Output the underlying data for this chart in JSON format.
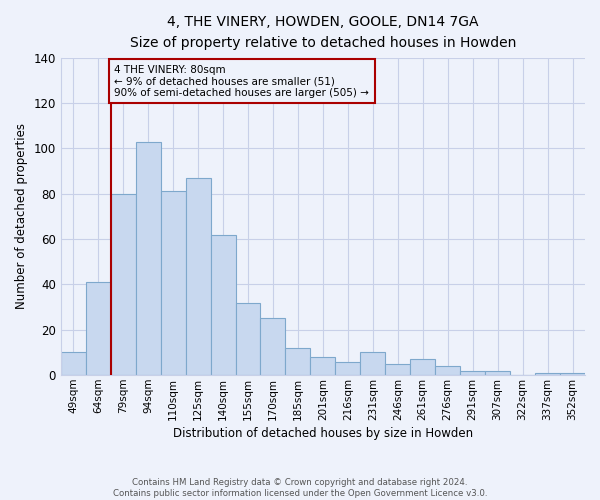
{
  "title": "4, THE VINERY, HOWDEN, GOOLE, DN14 7GA",
  "subtitle": "Size of property relative to detached houses in Howden",
  "xlabel": "Distribution of detached houses by size in Howden",
  "ylabel": "Number of detached properties",
  "categories": [
    "49sqm",
    "64sqm",
    "79sqm",
    "94sqm",
    "110sqm",
    "125sqm",
    "140sqm",
    "155sqm",
    "170sqm",
    "185sqm",
    "201sqm",
    "216sqm",
    "231sqm",
    "246sqm",
    "261sqm",
    "276sqm",
    "291sqm",
    "307sqm",
    "322sqm",
    "337sqm",
    "352sqm"
  ],
  "values": [
    10,
    41,
    80,
    103,
    81,
    87,
    62,
    32,
    25,
    12,
    8,
    6,
    10,
    5,
    7,
    4,
    2,
    2,
    0,
    1,
    1
  ],
  "bar_color": "#c8d8ef",
  "bar_edge_color": "#7ea8cc",
  "vline_x_index": 2,
  "vline_color": "#aa0000",
  "ylim": [
    0,
    140
  ],
  "annotation_text": "4 THE VINERY: 80sqm\n← 9% of detached houses are smaller (51)\n90% of semi-detached houses are larger (505) →",
  "annotation_box_edgecolor": "#aa0000",
  "footer_line1": "Contains HM Land Registry data © Crown copyright and database right 2024.",
  "footer_line2": "Contains public sector information licensed under the Open Government Licence v3.0.",
  "background_color": "#eef2fb",
  "grid_color": "#c8d0e8",
  "yticks": [
    0,
    20,
    40,
    60,
    80,
    100,
    120,
    140
  ]
}
